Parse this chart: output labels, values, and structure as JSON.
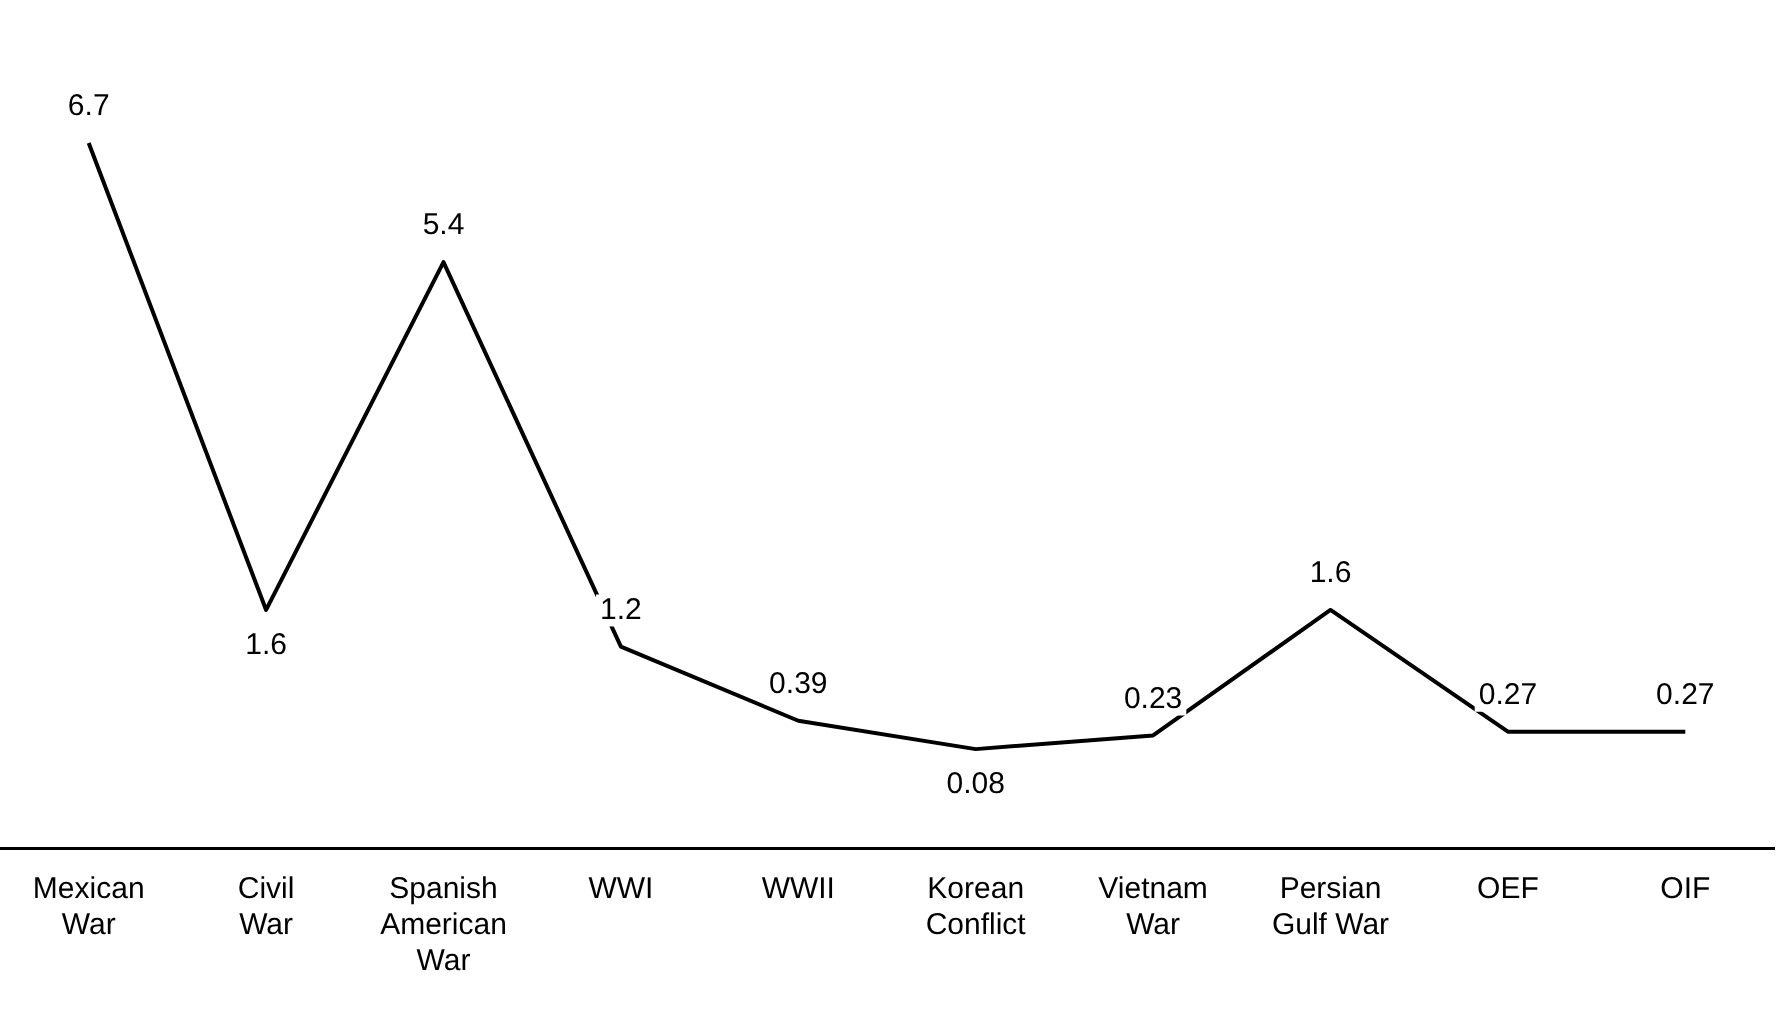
{
  "chart_data": {
    "type": "line",
    "categories": [
      "Mexican War",
      "Civil War",
      "Spanish American War",
      "WWI",
      "WWII",
      "Korean Conflict",
      "Vietnam War",
      "Persian Gulf War",
      "OEF",
      "OIF"
    ],
    "series": [
      {
        "color": "#000000",
        "values": [
          6.7,
          1.6,
          5.4,
          1.2,
          0.39,
          0.08,
          0.23,
          1.6,
          0.27,
          0.27
        ]
      }
    ],
    "data_labels": true,
    "grid": false,
    "legend": false,
    "marker": "none"
  }
}
